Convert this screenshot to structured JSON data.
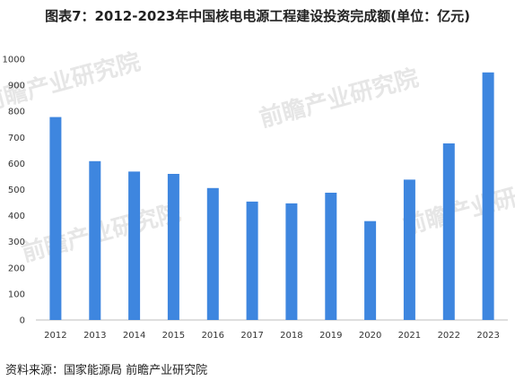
{
  "title": "图表7：2012-2023年中国核电电源工程建设投资完成额(单位：亿元)",
  "source": "资料来源：国家能源局 前瞻产业研究院",
  "watermark_text": "前瞻产业研究院",
  "chart_data": {
    "type": "bar",
    "title": "图表7：2012-2023年中国核电电源工程建设投资完成额(单位：亿元)",
    "xlabel": "",
    "ylabel": "",
    "categories": [
      "2012",
      "2013",
      "2014",
      "2015",
      "2016",
      "2017",
      "2018",
      "2019",
      "2020",
      "2021",
      "2022",
      "2023"
    ],
    "series": [
      {
        "values": [
          778,
          609,
          569,
          560,
          506,
          454,
          447,
          488,
          379,
          538,
          677,
          949
        ]
      }
    ],
    "ylim": [
      0,
      1000
    ],
    "yticks": [
      0,
      100,
      200,
      300,
      400,
      500,
      600,
      700,
      800,
      900,
      1000
    ],
    "grid": false,
    "legend": "none",
    "bar_color": "#3e86df",
    "axis_color": "#bfbfbf"
  }
}
